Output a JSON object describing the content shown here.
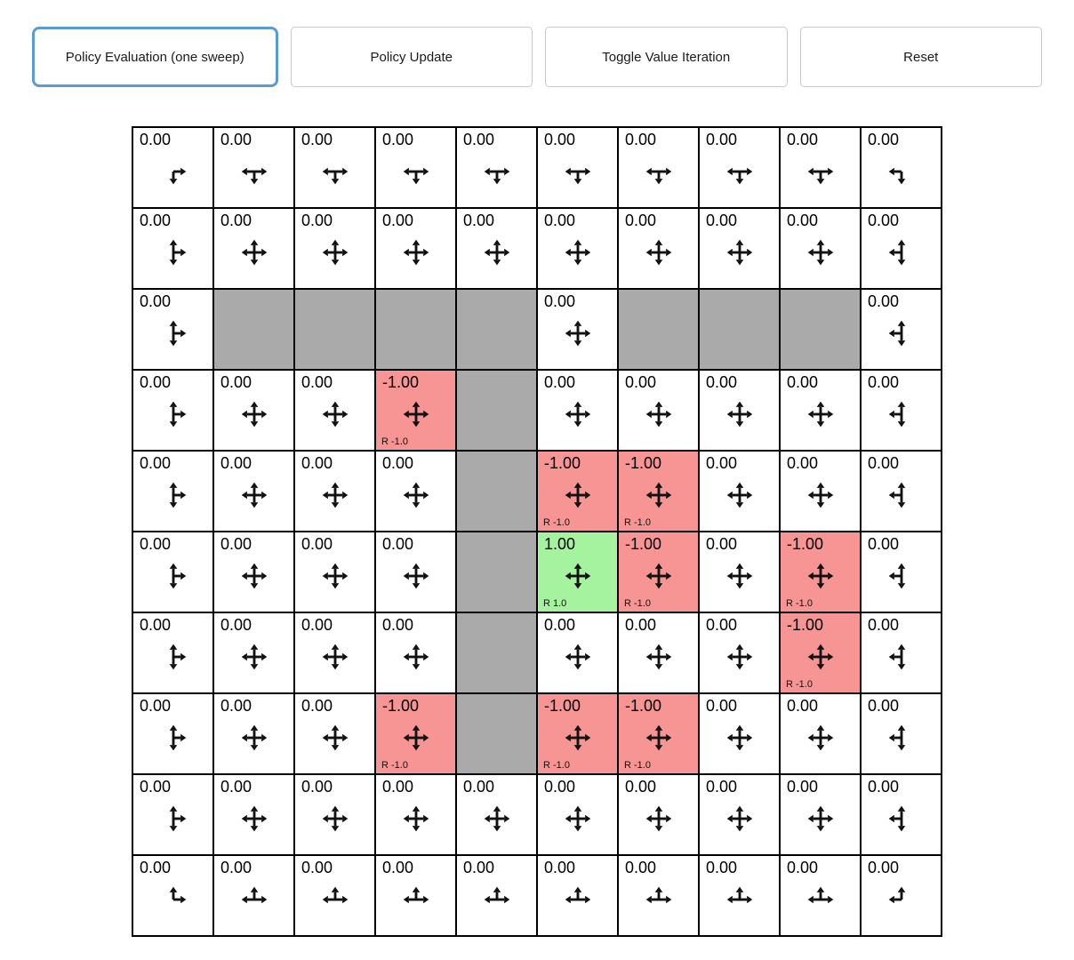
{
  "toolbar": {
    "active_border_color": "#5b9bd5",
    "buttons": [
      {
        "label": "Policy Evaluation (one sweep)",
        "active": true
      },
      {
        "label": "Policy Update",
        "active": false
      },
      {
        "label": "Toggle Value Iteration",
        "active": false
      },
      {
        "label": "Reset",
        "active": false
      }
    ]
  },
  "grid": {
    "rows": 10,
    "cols": 10,
    "colors": {
      "wall": "#aaaaaa",
      "negative": "#f79494",
      "positive": "#a5f29f",
      "cell_background": "#ffffff",
      "grid_line": "#000000",
      "arrow": "#111111"
    },
    "arrow_legend": {
      "U": "up-arrow",
      "D": "down-arrow",
      "L": "left-arrow",
      "R": "right-arrow"
    },
    "cells": [
      [
        {
          "value": "0.00",
          "type": "normal",
          "arrows": [
            "D",
            "R"
          ]
        },
        {
          "value": "0.00",
          "type": "normal",
          "arrows": [
            "D",
            "L",
            "R"
          ]
        },
        {
          "value": "0.00",
          "type": "normal",
          "arrows": [
            "D",
            "L",
            "R"
          ]
        },
        {
          "value": "0.00",
          "type": "normal",
          "arrows": [
            "D",
            "L",
            "R"
          ]
        },
        {
          "value": "0.00",
          "type": "normal",
          "arrows": [
            "D",
            "L",
            "R"
          ]
        },
        {
          "value": "0.00",
          "type": "normal",
          "arrows": [
            "D",
            "L",
            "R"
          ]
        },
        {
          "value": "0.00",
          "type": "normal",
          "arrows": [
            "D",
            "L",
            "R"
          ]
        },
        {
          "value": "0.00",
          "type": "normal",
          "arrows": [
            "D",
            "L",
            "R"
          ]
        },
        {
          "value": "0.00",
          "type": "normal",
          "arrows": [
            "D",
            "L",
            "R"
          ]
        },
        {
          "value": "0.00",
          "type": "normal",
          "arrows": [
            "D",
            "L"
          ]
        }
      ],
      [
        {
          "value": "0.00",
          "type": "normal",
          "arrows": [
            "U",
            "D",
            "R"
          ]
        },
        {
          "value": "0.00",
          "type": "normal",
          "arrows": [
            "U",
            "D",
            "L",
            "R"
          ]
        },
        {
          "value": "0.00",
          "type": "normal",
          "arrows": [
            "U",
            "D",
            "L",
            "R"
          ]
        },
        {
          "value": "0.00",
          "type": "normal",
          "arrows": [
            "U",
            "D",
            "L",
            "R"
          ]
        },
        {
          "value": "0.00",
          "type": "normal",
          "arrows": [
            "U",
            "D",
            "L",
            "R"
          ]
        },
        {
          "value": "0.00",
          "type": "normal",
          "arrows": [
            "U",
            "D",
            "L",
            "R"
          ]
        },
        {
          "value": "0.00",
          "type": "normal",
          "arrows": [
            "U",
            "D",
            "L",
            "R"
          ]
        },
        {
          "value": "0.00",
          "type": "normal",
          "arrows": [
            "U",
            "D",
            "L",
            "R"
          ]
        },
        {
          "value": "0.00",
          "type": "normal",
          "arrows": [
            "U",
            "D",
            "L",
            "R"
          ]
        },
        {
          "value": "0.00",
          "type": "normal",
          "arrows": [
            "U",
            "D",
            "L"
          ]
        }
      ],
      [
        {
          "value": "0.00",
          "type": "normal",
          "arrows": [
            "U",
            "D",
            "R"
          ]
        },
        {
          "type": "wall"
        },
        {
          "type": "wall"
        },
        {
          "type": "wall"
        },
        {
          "type": "wall"
        },
        {
          "value": "0.00",
          "type": "normal",
          "arrows": [
            "U",
            "D",
            "L",
            "R"
          ]
        },
        {
          "type": "wall"
        },
        {
          "type": "wall"
        },
        {
          "type": "wall"
        },
        {
          "value": "0.00",
          "type": "normal",
          "arrows": [
            "U",
            "D",
            "L"
          ]
        }
      ],
      [
        {
          "value": "0.00",
          "type": "normal",
          "arrows": [
            "U",
            "D",
            "R"
          ]
        },
        {
          "value": "0.00",
          "type": "normal",
          "arrows": [
            "U",
            "D",
            "L",
            "R"
          ]
        },
        {
          "value": "0.00",
          "type": "normal",
          "arrows": [
            "U",
            "D",
            "L",
            "R"
          ]
        },
        {
          "value": "-1.00",
          "type": "negative",
          "reward": "R -1.0",
          "arrows": [
            "U",
            "D",
            "L",
            "R"
          ]
        },
        {
          "type": "wall"
        },
        {
          "value": "0.00",
          "type": "normal",
          "arrows": [
            "U",
            "D",
            "L",
            "R"
          ]
        },
        {
          "value": "0.00",
          "type": "normal",
          "arrows": [
            "U",
            "D",
            "L",
            "R"
          ]
        },
        {
          "value": "0.00",
          "type": "normal",
          "arrows": [
            "U",
            "D",
            "L",
            "R"
          ]
        },
        {
          "value": "0.00",
          "type": "normal",
          "arrows": [
            "U",
            "D",
            "L",
            "R"
          ]
        },
        {
          "value": "0.00",
          "type": "normal",
          "arrows": [
            "U",
            "D",
            "L"
          ]
        }
      ],
      [
        {
          "value": "0.00",
          "type": "normal",
          "arrows": [
            "U",
            "D",
            "R"
          ]
        },
        {
          "value": "0.00",
          "type": "normal",
          "arrows": [
            "U",
            "D",
            "L",
            "R"
          ]
        },
        {
          "value": "0.00",
          "type": "normal",
          "arrows": [
            "U",
            "D",
            "L",
            "R"
          ]
        },
        {
          "value": "0.00",
          "type": "normal",
          "arrows": [
            "U",
            "D",
            "L",
            "R"
          ]
        },
        {
          "type": "wall"
        },
        {
          "value": "-1.00",
          "type": "negative",
          "reward": "R -1.0",
          "arrows": [
            "U",
            "D",
            "L",
            "R"
          ]
        },
        {
          "value": "-1.00",
          "type": "negative",
          "reward": "R -1.0",
          "arrows": [
            "U",
            "D",
            "L",
            "R"
          ]
        },
        {
          "value": "0.00",
          "type": "normal",
          "arrows": [
            "U",
            "D",
            "L",
            "R"
          ]
        },
        {
          "value": "0.00",
          "type": "normal",
          "arrows": [
            "U",
            "D",
            "L",
            "R"
          ]
        },
        {
          "value": "0.00",
          "type": "normal",
          "arrows": [
            "U",
            "D",
            "L"
          ]
        }
      ],
      [
        {
          "value": "0.00",
          "type": "normal",
          "arrows": [
            "U",
            "D",
            "R"
          ]
        },
        {
          "value": "0.00",
          "type": "normal",
          "arrows": [
            "U",
            "D",
            "L",
            "R"
          ]
        },
        {
          "value": "0.00",
          "type": "normal",
          "arrows": [
            "U",
            "D",
            "L",
            "R"
          ]
        },
        {
          "value": "0.00",
          "type": "normal",
          "arrows": [
            "U",
            "D",
            "L",
            "R"
          ]
        },
        {
          "type": "wall"
        },
        {
          "value": "1.00",
          "type": "positive",
          "reward": "R 1.0",
          "arrows": [
            "U",
            "D",
            "L",
            "R"
          ]
        },
        {
          "value": "-1.00",
          "type": "negative",
          "reward": "R -1.0",
          "arrows": [
            "U",
            "D",
            "L",
            "R"
          ]
        },
        {
          "value": "0.00",
          "type": "normal",
          "arrows": [
            "U",
            "D",
            "L",
            "R"
          ]
        },
        {
          "value": "-1.00",
          "type": "negative",
          "reward": "R -1.0",
          "arrows": [
            "U",
            "D",
            "L",
            "R"
          ]
        },
        {
          "value": "0.00",
          "type": "normal",
          "arrows": [
            "U",
            "D",
            "L"
          ]
        }
      ],
      [
        {
          "value": "0.00",
          "type": "normal",
          "arrows": [
            "U",
            "D",
            "R"
          ]
        },
        {
          "value": "0.00",
          "type": "normal",
          "arrows": [
            "U",
            "D",
            "L",
            "R"
          ]
        },
        {
          "value": "0.00",
          "type": "normal",
          "arrows": [
            "U",
            "D",
            "L",
            "R"
          ]
        },
        {
          "value": "0.00",
          "type": "normal",
          "arrows": [
            "U",
            "D",
            "L",
            "R"
          ]
        },
        {
          "type": "wall"
        },
        {
          "value": "0.00",
          "type": "normal",
          "arrows": [
            "U",
            "D",
            "L",
            "R"
          ]
        },
        {
          "value": "0.00",
          "type": "normal",
          "arrows": [
            "U",
            "D",
            "L",
            "R"
          ]
        },
        {
          "value": "0.00",
          "type": "normal",
          "arrows": [
            "U",
            "D",
            "L",
            "R"
          ]
        },
        {
          "value": "-1.00",
          "type": "negative",
          "reward": "R -1.0",
          "arrows": [
            "U",
            "D",
            "L",
            "R"
          ]
        },
        {
          "value": "0.00",
          "type": "normal",
          "arrows": [
            "U",
            "D",
            "L"
          ]
        }
      ],
      [
        {
          "value": "0.00",
          "type": "normal",
          "arrows": [
            "U",
            "D",
            "R"
          ]
        },
        {
          "value": "0.00",
          "type": "normal",
          "arrows": [
            "U",
            "D",
            "L",
            "R"
          ]
        },
        {
          "value": "0.00",
          "type": "normal",
          "arrows": [
            "U",
            "D",
            "L",
            "R"
          ]
        },
        {
          "value": "-1.00",
          "type": "negative",
          "reward": "R -1.0",
          "arrows": [
            "U",
            "D",
            "L",
            "R"
          ]
        },
        {
          "type": "wall"
        },
        {
          "value": "-1.00",
          "type": "negative",
          "reward": "R -1.0",
          "arrows": [
            "U",
            "D",
            "L",
            "R"
          ]
        },
        {
          "value": "-1.00",
          "type": "negative",
          "reward": "R -1.0",
          "arrows": [
            "U",
            "D",
            "L",
            "R"
          ]
        },
        {
          "value": "0.00",
          "type": "normal",
          "arrows": [
            "U",
            "D",
            "L",
            "R"
          ]
        },
        {
          "value": "0.00",
          "type": "normal",
          "arrows": [
            "U",
            "D",
            "L",
            "R"
          ]
        },
        {
          "value": "0.00",
          "type": "normal",
          "arrows": [
            "U",
            "D",
            "L"
          ]
        }
      ],
      [
        {
          "value": "0.00",
          "type": "normal",
          "arrows": [
            "U",
            "D",
            "R"
          ]
        },
        {
          "value": "0.00",
          "type": "normal",
          "arrows": [
            "U",
            "D",
            "L",
            "R"
          ]
        },
        {
          "value": "0.00",
          "type": "normal",
          "arrows": [
            "U",
            "D",
            "L",
            "R"
          ]
        },
        {
          "value": "0.00",
          "type": "normal",
          "arrows": [
            "U",
            "D",
            "L",
            "R"
          ]
        },
        {
          "value": "0.00",
          "type": "normal",
          "arrows": [
            "U",
            "D",
            "L",
            "R"
          ]
        },
        {
          "value": "0.00",
          "type": "normal",
          "arrows": [
            "U",
            "D",
            "L",
            "R"
          ]
        },
        {
          "value": "0.00",
          "type": "normal",
          "arrows": [
            "U",
            "D",
            "L",
            "R"
          ]
        },
        {
          "value": "0.00",
          "type": "normal",
          "arrows": [
            "U",
            "D",
            "L",
            "R"
          ]
        },
        {
          "value": "0.00",
          "type": "normal",
          "arrows": [
            "U",
            "D",
            "L",
            "R"
          ]
        },
        {
          "value": "0.00",
          "type": "normal",
          "arrows": [
            "U",
            "D",
            "L"
          ]
        }
      ],
      [
        {
          "value": "0.00",
          "type": "normal",
          "arrows": [
            "U",
            "R"
          ]
        },
        {
          "value": "0.00",
          "type": "normal",
          "arrows": [
            "U",
            "L",
            "R"
          ]
        },
        {
          "value": "0.00",
          "type": "normal",
          "arrows": [
            "U",
            "L",
            "R"
          ]
        },
        {
          "value": "0.00",
          "type": "normal",
          "arrows": [
            "U",
            "L",
            "R"
          ]
        },
        {
          "value": "0.00",
          "type": "normal",
          "arrows": [
            "U",
            "L",
            "R"
          ]
        },
        {
          "value": "0.00",
          "type": "normal",
          "arrows": [
            "U",
            "L",
            "R"
          ]
        },
        {
          "value": "0.00",
          "type": "normal",
          "arrows": [
            "U",
            "L",
            "R"
          ]
        },
        {
          "value": "0.00",
          "type": "normal",
          "arrows": [
            "U",
            "L",
            "R"
          ]
        },
        {
          "value": "0.00",
          "type": "normal",
          "arrows": [
            "U",
            "L",
            "R"
          ]
        },
        {
          "value": "0.00",
          "type": "normal",
          "arrows": [
            "U",
            "L"
          ]
        }
      ]
    ]
  }
}
